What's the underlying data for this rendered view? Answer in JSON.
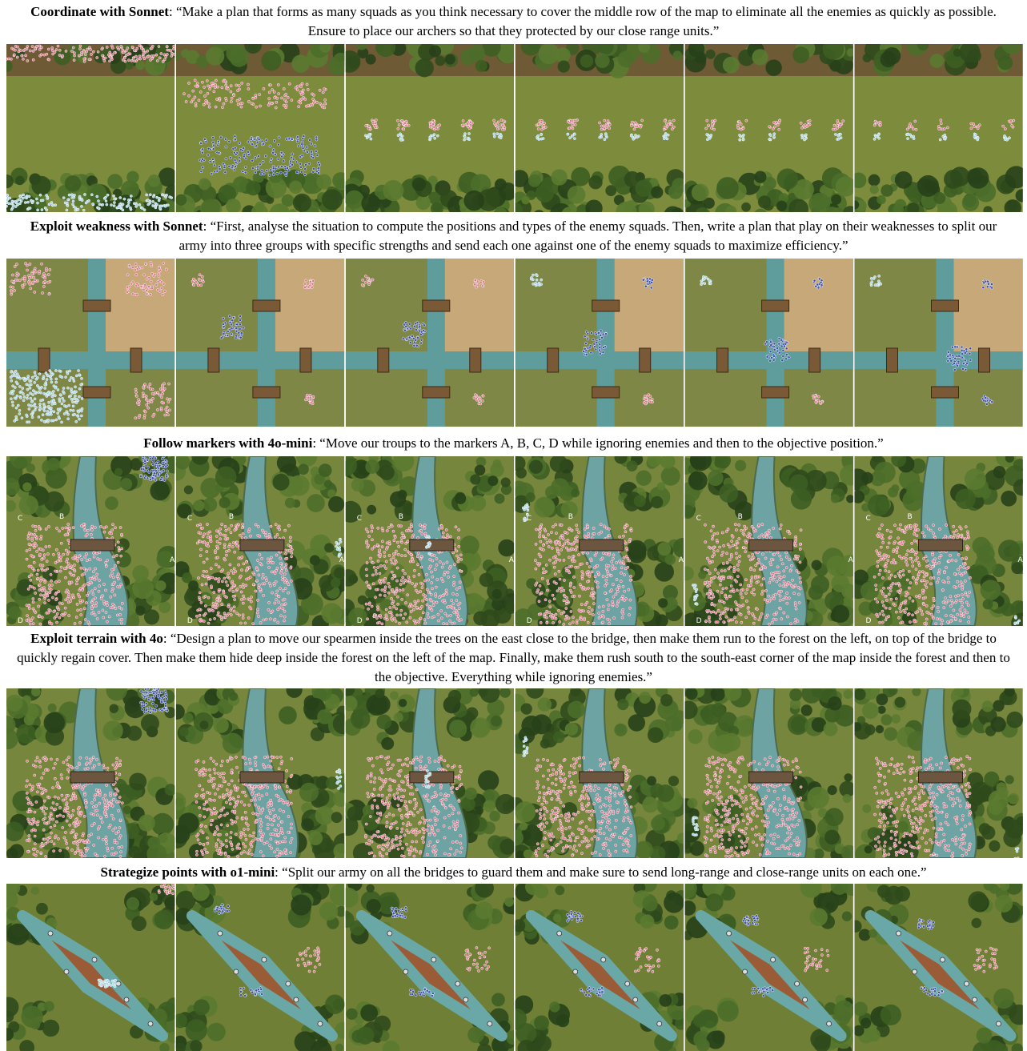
{
  "sections": [
    {
      "title": "Coordinate with Sonnet",
      "text": ": “Make a plan that forms as many squads as you think necessary to cover the middle row of the map to eliminate all the enemies as quickly as possible. Ensure to place our archers so that they protected by our close range units.”"
    },
    {
      "title": "Exploit weakness with Sonnet",
      "text": ": “First, analyse the situation to compute the positions and types of the enemy squads. Then, write a plan that play on their weaknesses to split our army into three groups with specific strengths and send each one against one of the enemy squads to maximize efficiency.”"
    },
    {
      "title": "Follow markers with 4o-mini",
      "text": ": “Move our troups to the markers A, B, C, D while ignoring enemies and then to the  objective position.”",
      "markers": [
        "A",
        "B",
        "C",
        "D"
      ]
    },
    {
      "title": "Exploit terrain with 4o",
      "text": ": “Design a plan to move our spearmen inside the trees on the east close to the bridge, then make them run to the forest on the left,  on top of the bridge to quickly regain cover. Then make them hide deep inside the forest on the left  of the map. Finally, make them rush south to the south-east corner of the map inside the forest and then to the objective. Everything while ignoring enemies.”"
    },
    {
      "title": "Strategize points with o1-mini",
      "text": ": “Split our army on all the bridges to guard them and make sure to send long-range and close-range units on each one.”"
    }
  ]
}
